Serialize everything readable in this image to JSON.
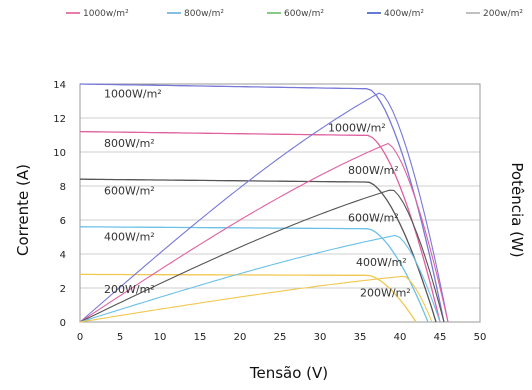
{
  "chart_data": {
    "type": "line",
    "xlabel": "Tensão (V)",
    "ylabel_left": "Corrente (A)",
    "ylabel_right": "Potência (W)",
    "xlim": [
      0,
      50
    ],
    "ylim": [
      0,
      14
    ],
    "x_ticks": [
      0,
      5,
      10,
      15,
      20,
      25,
      30,
      35,
      40,
      45,
      50
    ],
    "y_ticks": [
      0,
      2,
      4,
      6,
      8,
      10,
      12,
      14
    ],
    "grid": "horizontal",
    "legend_position": "top",
    "legend": [
      {
        "label": "1000w/m²",
        "color": "#e0508a"
      },
      {
        "label": "800w/m²",
        "color": "#5aa8d8"
      },
      {
        "label": "600w/m²",
        "color": "#5cb85c"
      },
      {
        "label": "400w/m²",
        "color": "#2f4fc0"
      },
      {
        "label": "200w/m²",
        "color": "#aaaaaa"
      }
    ],
    "current_series": [
      {
        "irradiance": "1000W/m²",
        "color": "#7878d8",
        "isc": 14.0,
        "voc": 45.5,
        "vmpp": 36.0,
        "label": "1000W/m²",
        "label_x": 3,
        "label_y": 13.2
      },
      {
        "irradiance": "800W/m²",
        "color": "#e060a0",
        "isc": 11.2,
        "voc": 45.0,
        "vmpp": 36.0,
        "label": "800W/m²",
        "label_x": 3,
        "label_y": 10.3
      },
      {
        "irradiance": "600W/m²",
        "color": "#555555",
        "isc": 8.4,
        "voc": 44.5,
        "vmpp": 36.0,
        "label": "600W/m²",
        "label_x": 3,
        "label_y": 7.5
      },
      {
        "irradiance": "400W/m²",
        "color": "#6cc0e8",
        "isc": 5.6,
        "voc": 43.5,
        "vmpp": 36.0,
        "label": "400W/m²",
        "label_x": 3,
        "label_y": 4.8
      },
      {
        "irradiance": "200W/m²",
        "color": "#f0c850",
        "isc": 2.8,
        "voc": 42.0,
        "vmpp": 36.0,
        "label": "200W/m²",
        "label_x": 3,
        "label_y": 1.7
      }
    ],
    "power_series": [
      {
        "irradiance": "1000W/m²",
        "color": "#7878d8",
        "peak_x": 37.5,
        "peak_y": 13.5,
        "voc": 46.0,
        "label": "1000W/m²",
        "label_x": 31,
        "label_y": 11.2
      },
      {
        "irradiance": "800W/m²",
        "color": "#e060a0",
        "peak_x": 38.5,
        "peak_y": 10.5,
        "voc": 46.0,
        "label": "800W/m²",
        "label_x": 33.5,
        "label_y": 8.7
      },
      {
        "irradiance": "600W/m²",
        "color": "#555555",
        "peak_x": 39.0,
        "peak_y": 7.8,
        "voc": 45.5,
        "label": "600W/m²",
        "label_x": 33.5,
        "label_y": 5.9
      },
      {
        "irradiance": "400W/m²",
        "color": "#6cc0e8",
        "peak_x": 39.5,
        "peak_y": 5.1,
        "voc": 45.0,
        "label": "400W/m²",
        "label_x": 34.5,
        "label_y": 3.3
      },
      {
        "irradiance": "200W/m²",
        "color": "#f0c850",
        "peak_x": 40.5,
        "peak_y": 2.7,
        "voc": 44.0,
        "label": "200W/m²",
        "label_x": 35,
        "label_y": 1.5
      }
    ]
  }
}
